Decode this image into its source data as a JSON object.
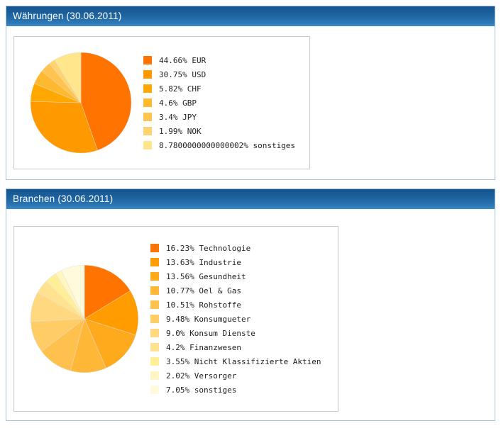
{
  "chart_data": [
    {
      "type": "pie",
      "title": "Währungen (30.06.2011)",
      "labels": [
        "EUR",
        "USD",
        "CHF",
        "GBP",
        "JPY",
        "NOK",
        "sonstiges"
      ],
      "values": [
        44.66,
        30.75,
        5.82,
        4.6,
        3.4,
        1.99,
        8.78
      ],
      "legend": [
        "44.66% EUR",
        "30.75% USD",
        "5.82% CHF",
        "4.6% GBP",
        "3.4% JPY",
        "1.99% NOK",
        "8.7800000000000002% sonstiges"
      ],
      "colors": [
        "#FF7300",
        "#FF9900",
        "#FFA800",
        "#FFB931",
        "#FFC44F",
        "#FFD470",
        "#FFE58C"
      ],
      "legend_position": "right",
      "start_angle_deg": -90,
      "direction": "clockwise"
    },
    {
      "type": "pie",
      "title": "Branchen (30.06.2011)",
      "labels": [
        "Technologie",
        "Industrie",
        "Gesundheit",
        "Oel & Gas",
        "Rohstoffe",
        "Konsumgueter",
        "Konsum Dienste",
        "Finanzwesen",
        "Nicht Klassifizierte Aktien",
        "Versorger",
        "sonstiges"
      ],
      "values": [
        16.23,
        13.63,
        13.56,
        10.77,
        10.51,
        9.48,
        9.0,
        4.2,
        3.55,
        2.02,
        7.05
      ],
      "legend": [
        "16.23% Technologie",
        "13.63% Industrie",
        "13.56% Gesundheit",
        "10.77% Oel & Gas",
        "10.51% Rohstoffe",
        "9.48% Konsumgueter",
        "9.0% Konsum Dienste",
        "4.2% Finanzwesen",
        "3.55% Nicht Klassifizierte Aktien",
        "2.02% Versorger",
        "7.05% sonstiges"
      ],
      "colors": [
        "#FF7300",
        "#FF9D00",
        "#FFA91C",
        "#FFB738",
        "#FFC14E",
        "#FFCC66",
        "#FFD87F",
        "#FFE28F",
        "#FFEF99",
        "#FFF6C2",
        "#FFFADB"
      ],
      "legend_position": "right",
      "start_angle_deg": -90,
      "direction": "clockwise"
    }
  ]
}
